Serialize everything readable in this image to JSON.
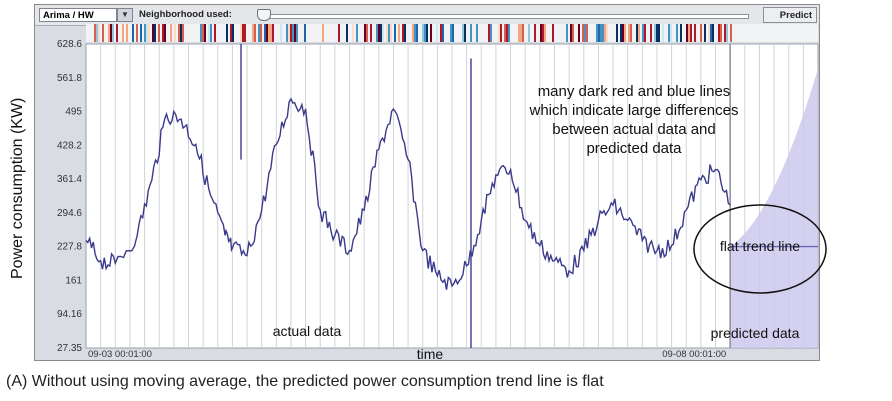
{
  "toolbar": {
    "model_value": "Arima / HW",
    "neighborhood_label": "Neighborhood used:",
    "slider_level": 0.0,
    "predict_label": "Predict"
  },
  "chart_data": {
    "type": "line",
    "ylabel": "Power consumption (KW)",
    "xlabel": "time",
    "ylim": [
      27.35,
      628.6
    ],
    "y_ticks": [
      "628.6",
      "561.8",
      "495",
      "428.2",
      "361.4",
      "294.6",
      "227.8",
      "161",
      "94.16",
      "27.35"
    ],
    "x_tick_labels": [
      "09-03 00:01:00",
      "09-08 00:01:00"
    ],
    "annotations": {
      "differences_note": [
        "many dark red and blue lines",
        "which indicate large differences",
        "between actual data and",
        "predicted data"
      ],
      "flat_trend": "flat trend line",
      "actual_data": "actual data",
      "predicted_data": "predicted data"
    },
    "series": [
      {
        "color": "#3b3a8c",
        "x": [
          0,
          0.1,
          0.2,
          0.35,
          0.45,
          0.55,
          0.65,
          0.75,
          0.85,
          0.95,
          1.0,
          1.1,
          1.2,
          1.3,
          1.4,
          1.5,
          1.6,
          1.7,
          1.8,
          1.9,
          2.0,
          2.1,
          2.2,
          2.3,
          2.4,
          2.5,
          2.6,
          2.7,
          2.8,
          2.9,
          3.0,
          3.1,
          3.2,
          3.3,
          3.4,
          3.5,
          3.6,
          3.7,
          3.8,
          3.9,
          4.0,
          4.1,
          4.2,
          4.3,
          4.4,
          4.5,
          4.6,
          4.7,
          4.8,
          4.9,
          5.0
        ],
        "values": [
          240,
          200,
          195,
          250,
          360,
          490,
          480,
          430,
          330,
          250,
          225,
          210,
          300,
          430,
          520,
          500,
          300,
          250,
          220,
          300,
          420,
          500,
          400,
          220,
          170,
          150,
          190,
          280,
          370,
          380,
          280,
          230,
          200,
          180,
          220,
          280,
          310,
          280,
          240,
          220,
          230,
          300,
          360,
          380,
          310,
          250,
          235,
          230,
          228,
          228,
          228
        ],
        "forecast": {
          "from_x": 4.4,
          "to_x": 5.0,
          "value": 228,
          "band_upper_end": 580,
          "band_lower_end": 27.35
        }
      }
    ],
    "difference_strip": {
      "colors": [
        "#b2182b",
        "#2166ac",
        "#d6604d",
        "#4393c3",
        "#f4a582",
        "#92c5de",
        "#67001f",
        "#053061",
        "#fddbc7",
        "#d1e5f0"
      ]
    },
    "grid": true
  },
  "caption": "(A) Without using  moving average,  the predicted power consumption trend line is flat"
}
